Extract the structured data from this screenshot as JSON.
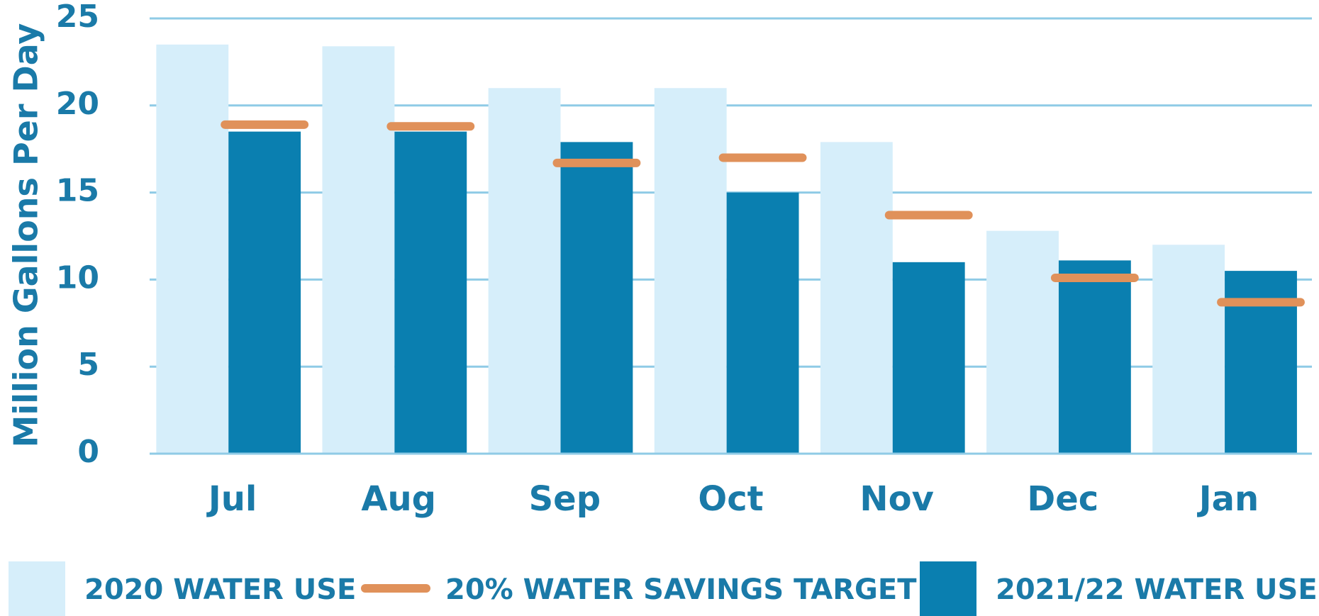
{
  "chart_data": {
    "type": "bar",
    "y_label": "Million Gallons Per Day",
    "categories": [
      "Jul",
      "Aug",
      "Sep",
      "Oct",
      "Nov",
      "Dec",
      "Jan"
    ],
    "series": [
      {
        "name": "2020 WATER USE",
        "color": "#d6eefa",
        "mark": "bar",
        "values": [
          23.5,
          23.4,
          21.0,
          21.0,
          17.9,
          12.8,
          12.0
        ]
      },
      {
        "name": "20% WATER SAVINGS TARGET",
        "color": "#e0915a",
        "mark": "dash",
        "values": [
          18.9,
          18.8,
          16.7,
          17.0,
          13.7,
          10.1,
          8.7
        ]
      },
      {
        "name": "2021/22 WATER USE",
        "color": "#0a7fb0",
        "mark": "bar",
        "values": [
          18.5,
          18.5,
          17.9,
          15.0,
          11.0,
          11.1,
          10.5
        ]
      }
    ],
    "ylim": [
      0,
      25
    ],
    "yticks": [
      0,
      5,
      10,
      15,
      20,
      25
    ],
    "grid": true,
    "legend": "bottom"
  }
}
